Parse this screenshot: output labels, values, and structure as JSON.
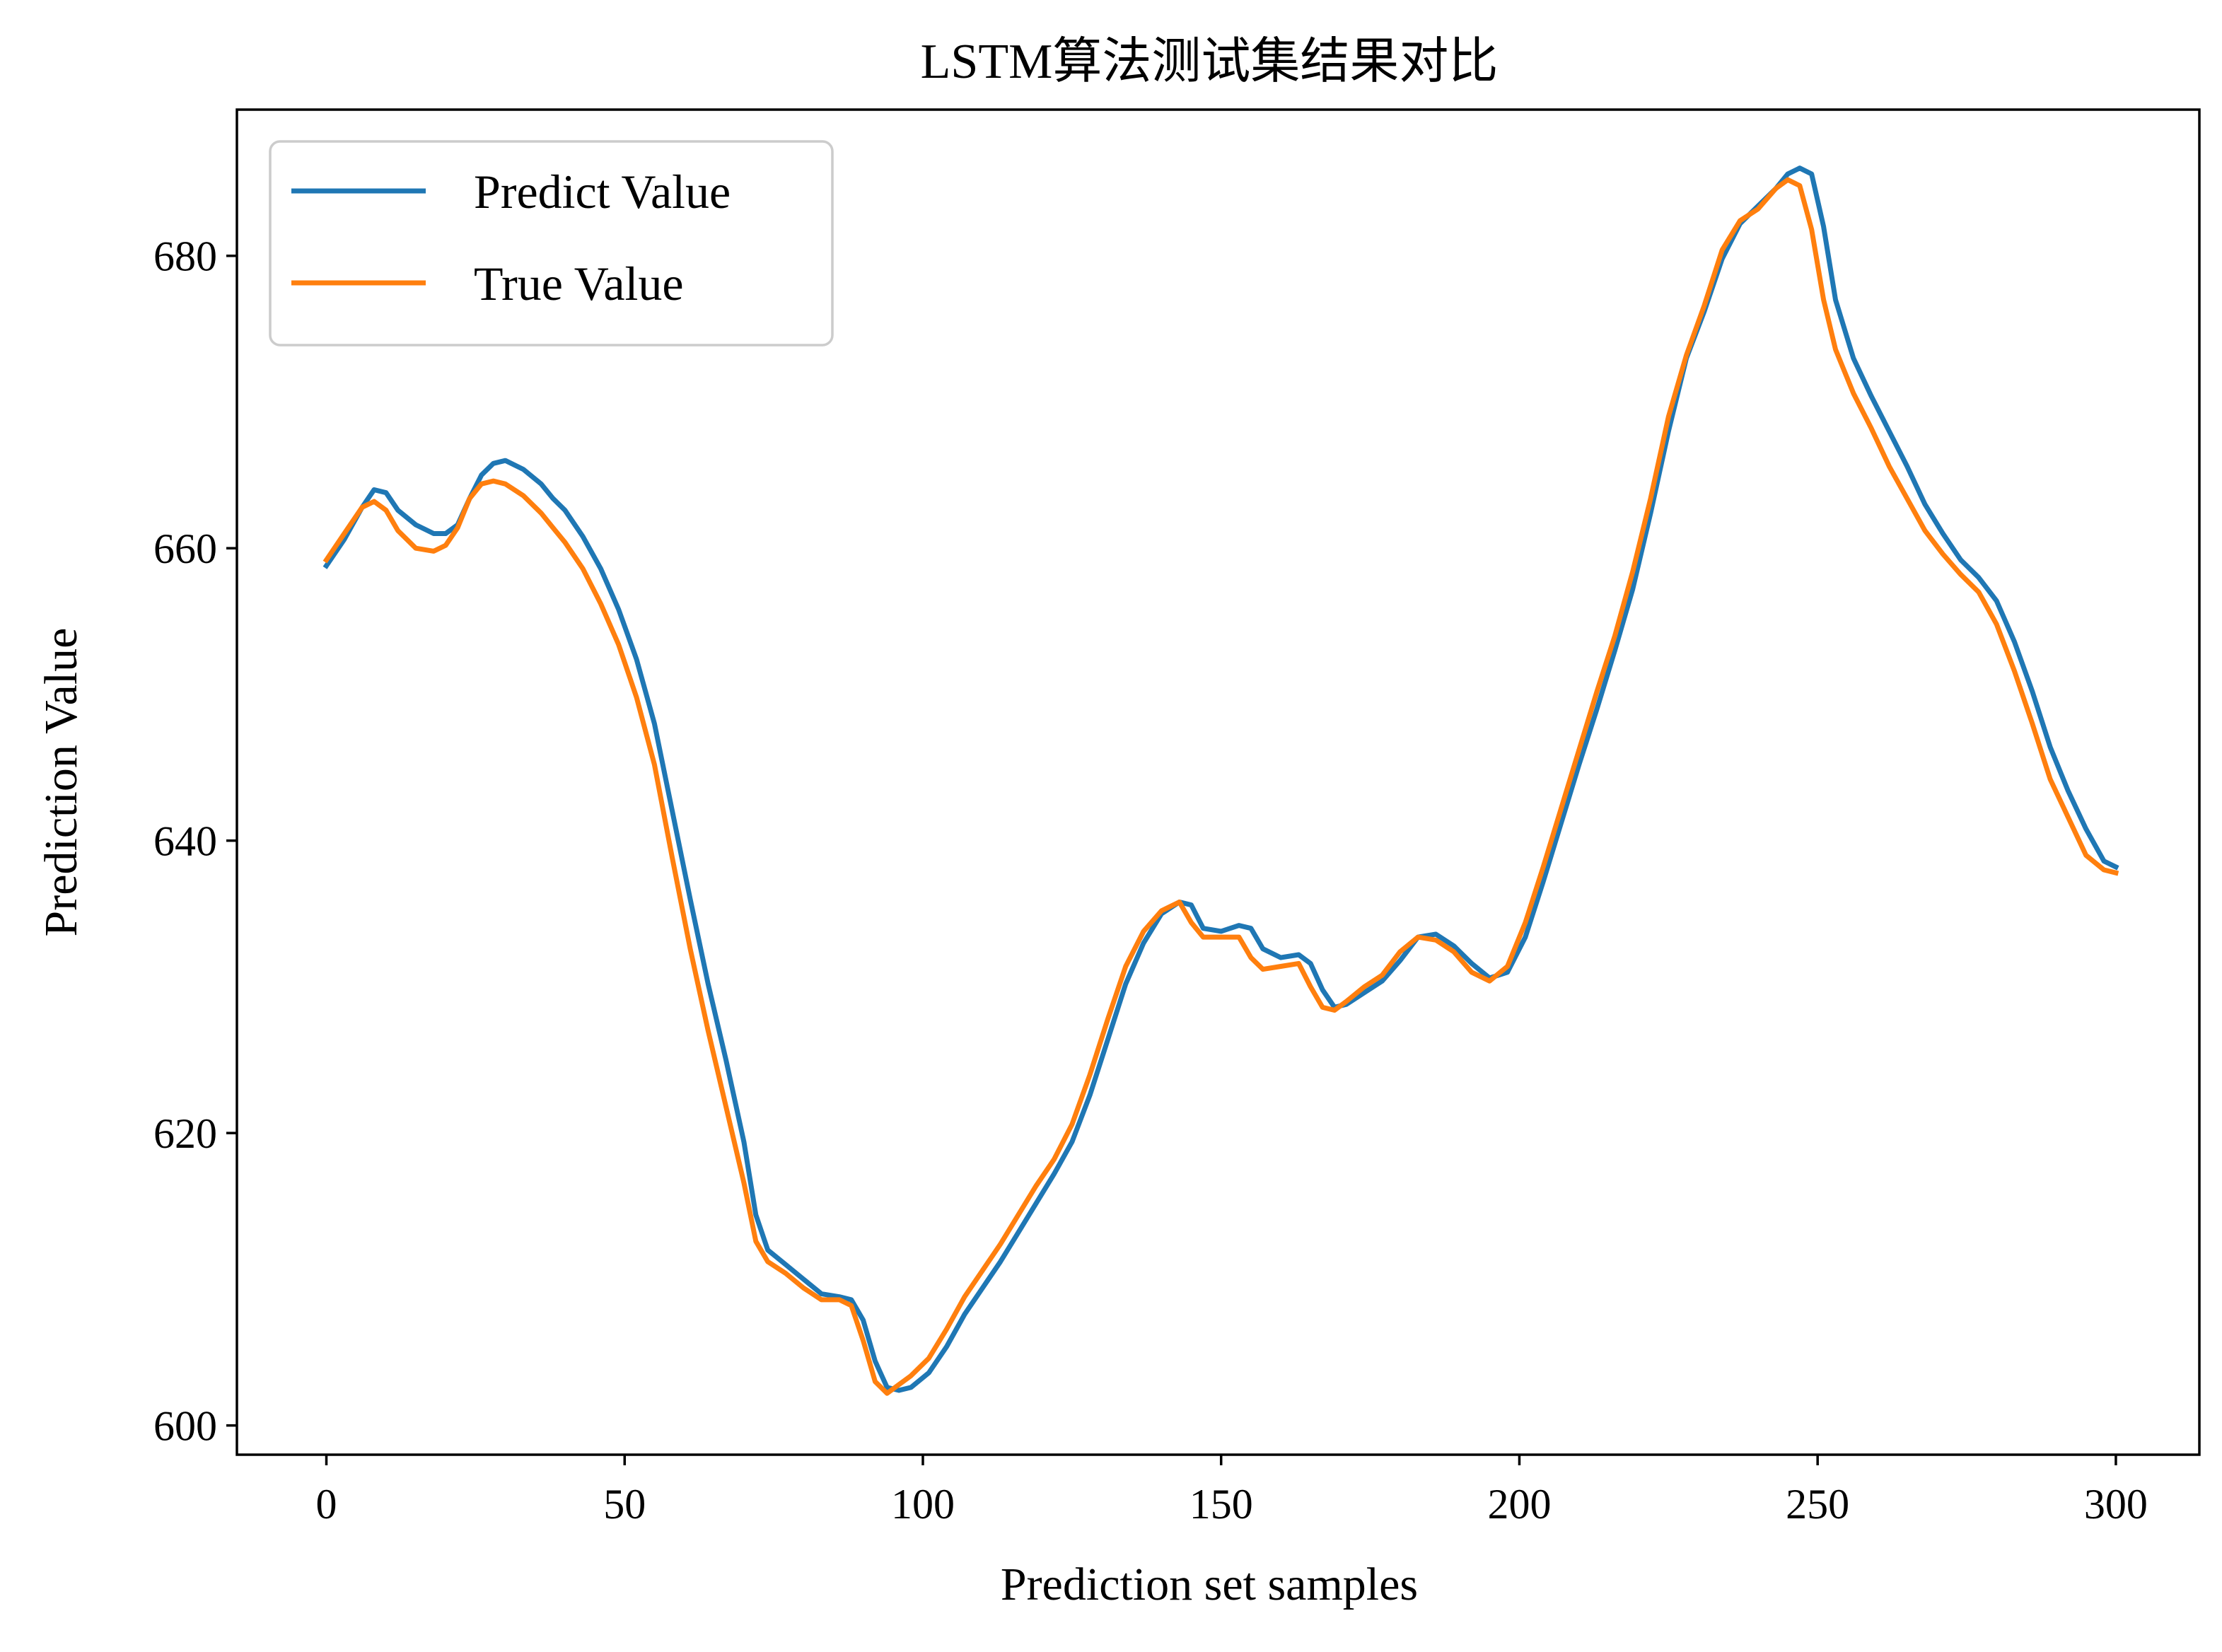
{
  "chart_data": {
    "type": "line",
    "title": "LSTM算法测试集结果对比",
    "xlabel": "Prediction set samples",
    "ylabel": "Prediction Value",
    "xlim": [
      -15,
      314
    ],
    "ylim": [
      598,
      690
    ],
    "xticks": [
      0,
      50,
      100,
      150,
      200,
      250,
      300
    ],
    "yticks": [
      600,
      620,
      640,
      660,
      680
    ],
    "grid": false,
    "legend_position": "top-left",
    "series": [
      {
        "name": "Predict Value",
        "color": "#1f77b4",
        "points": [
          [
            0,
            658.8
          ],
          [
            3,
            660.6
          ],
          [
            6,
            662.8
          ],
          [
            8,
            664.0
          ],
          [
            10,
            663.8
          ],
          [
            12,
            662.6
          ],
          [
            15,
            661.6
          ],
          [
            18,
            661.0
          ],
          [
            20,
            661.0
          ],
          [
            22,
            661.6
          ],
          [
            24,
            663.4
          ],
          [
            26,
            665.0
          ],
          [
            28,
            665.8
          ],
          [
            30,
            666.0
          ],
          [
            33,
            665.4
          ],
          [
            36,
            664.4
          ],
          [
            38,
            663.4
          ],
          [
            40,
            662.6
          ],
          [
            43,
            660.8
          ],
          [
            46,
            658.6
          ],
          [
            49,
            655.8
          ],
          [
            52,
            652.4
          ],
          [
            55,
            648.0
          ],
          [
            58,
            642.0
          ],
          [
            61,
            636.0
          ],
          [
            64,
            630.2
          ],
          [
            67,
            625.0
          ],
          [
            70,
            619.4
          ],
          [
            72,
            614.4
          ],
          [
            74,
            612.0
          ],
          [
            77,
            611.0
          ],
          [
            80,
            610.0
          ],
          [
            83,
            609.0
          ],
          [
            86,
            608.8
          ],
          [
            88,
            608.6
          ],
          [
            90,
            607.2
          ],
          [
            92,
            604.4
          ],
          [
            94,
            602.6
          ],
          [
            96,
            602.4
          ],
          [
            98,
            602.6
          ],
          [
            101,
            603.6
          ],
          [
            104,
            605.4
          ],
          [
            107,
            607.6
          ],
          [
            110,
            609.4
          ],
          [
            113,
            611.2
          ],
          [
            116,
            613.2
          ],
          [
            119,
            615.2
          ],
          [
            122,
            617.2
          ],
          [
            125,
            619.4
          ],
          [
            128,
            622.6
          ],
          [
            131,
            626.4
          ],
          [
            134,
            630.2
          ],
          [
            137,
            633.0
          ],
          [
            140,
            635.0
          ],
          [
            143,
            635.8
          ],
          [
            145,
            635.6
          ],
          [
            147,
            634.0
          ],
          [
            150,
            633.8
          ],
          [
            153,
            634.2
          ],
          [
            155,
            634.0
          ],
          [
            157,
            632.6
          ],
          [
            160,
            632.0
          ],
          [
            163,
            632.2
          ],
          [
            165,
            631.6
          ],
          [
            167,
            629.8
          ],
          [
            169,
            628.6
          ],
          [
            171,
            628.8
          ],
          [
            174,
            629.6
          ],
          [
            177,
            630.4
          ],
          [
            180,
            631.8
          ],
          [
            183,
            633.4
          ],
          [
            186,
            633.6
          ],
          [
            189,
            632.8
          ],
          [
            192,
            631.6
          ],
          [
            195,
            630.6
          ],
          [
            198,
            631.0
          ],
          [
            201,
            633.4
          ],
          [
            204,
            637.2
          ],
          [
            207,
            641.2
          ],
          [
            210,
            645.2
          ],
          [
            213,
            649.0
          ],
          [
            216,
            653.0
          ],
          [
            219,
            657.2
          ],
          [
            222,
            662.4
          ],
          [
            225,
            668.0
          ],
          [
            228,
            673.0
          ],
          [
            231,
            676.2
          ],
          [
            234,
            679.8
          ],
          [
            237,
            682.2
          ],
          [
            240,
            683.4
          ],
          [
            243,
            684.6
          ],
          [
            245,
            685.6
          ],
          [
            247,
            686.0
          ],
          [
            249,
            685.6
          ],
          [
            251,
            682.0
          ],
          [
            253,
            677.0
          ],
          [
            256,
            673.0
          ],
          [
            259,
            670.4
          ],
          [
            262,
            668.0
          ],
          [
            265,
            665.6
          ],
          [
            268,
            663.0
          ],
          [
            271,
            661.0
          ],
          [
            274,
            659.2
          ],
          [
            277,
            658.0
          ],
          [
            280,
            656.4
          ],
          [
            283,
            653.6
          ],
          [
            286,
            650.2
          ],
          [
            289,
            646.4
          ],
          [
            292,
            643.4
          ],
          [
            295,
            640.8
          ],
          [
            298,
            638.6
          ],
          [
            300,
            638.2
          ]
        ]
      },
      {
        "name": "True Value",
        "color": "#ff7f0e",
        "points": [
          [
            0,
            659.2
          ],
          [
            3,
            661.0
          ],
          [
            6,
            662.8
          ],
          [
            8,
            663.2
          ],
          [
            10,
            662.6
          ],
          [
            12,
            661.2
          ],
          [
            15,
            660.0
          ],
          [
            18,
            659.8
          ],
          [
            20,
            660.2
          ],
          [
            22,
            661.4
          ],
          [
            24,
            663.4
          ],
          [
            26,
            664.4
          ],
          [
            28,
            664.6
          ],
          [
            30,
            664.4
          ],
          [
            33,
            663.6
          ],
          [
            36,
            662.4
          ],
          [
            38,
            661.4
          ],
          [
            40,
            660.4
          ],
          [
            43,
            658.6
          ],
          [
            46,
            656.2
          ],
          [
            49,
            653.4
          ],
          [
            52,
            649.8
          ],
          [
            55,
            645.2
          ],
          [
            58,
            638.8
          ],
          [
            61,
            632.6
          ],
          [
            64,
            627.0
          ],
          [
            67,
            621.8
          ],
          [
            70,
            616.6
          ],
          [
            72,
            612.6
          ],
          [
            74,
            611.2
          ],
          [
            77,
            610.4
          ],
          [
            80,
            609.4
          ],
          [
            83,
            608.6
          ],
          [
            86,
            608.6
          ],
          [
            88,
            608.2
          ],
          [
            90,
            605.8
          ],
          [
            92,
            603.0
          ],
          [
            94,
            602.2
          ],
          [
            96,
            602.8
          ],
          [
            98,
            603.4
          ],
          [
            101,
            604.6
          ],
          [
            104,
            606.6
          ],
          [
            107,
            608.8
          ],
          [
            110,
            610.6
          ],
          [
            113,
            612.4
          ],
          [
            116,
            614.4
          ],
          [
            119,
            616.4
          ],
          [
            122,
            618.2
          ],
          [
            125,
            620.6
          ],
          [
            128,
            624.0
          ],
          [
            131,
            627.8
          ],
          [
            134,
            631.4
          ],
          [
            137,
            633.8
          ],
          [
            140,
            635.2
          ],
          [
            143,
            635.8
          ],
          [
            145,
            634.4
          ],
          [
            147,
            633.4
          ],
          [
            150,
            633.4
          ],
          [
            153,
            633.4
          ],
          [
            155,
            632.0
          ],
          [
            157,
            631.2
          ],
          [
            160,
            631.4
          ],
          [
            163,
            631.6
          ],
          [
            165,
            630.0
          ],
          [
            167,
            628.6
          ],
          [
            169,
            628.4
          ],
          [
            171,
            629.0
          ],
          [
            174,
            630.0
          ],
          [
            177,
            630.8
          ],
          [
            180,
            632.4
          ],
          [
            183,
            633.4
          ],
          [
            186,
            633.2
          ],
          [
            189,
            632.4
          ],
          [
            192,
            631.0
          ],
          [
            195,
            630.4
          ],
          [
            198,
            631.4
          ],
          [
            201,
            634.4
          ],
          [
            204,
            638.2
          ],
          [
            207,
            642.2
          ],
          [
            210,
            646.2
          ],
          [
            213,
            650.2
          ],
          [
            216,
            654.0
          ],
          [
            219,
            658.4
          ],
          [
            222,
            663.4
          ],
          [
            225,
            669.0
          ],
          [
            228,
            673.2
          ],
          [
            231,
            676.6
          ],
          [
            234,
            680.4
          ],
          [
            237,
            682.4
          ],
          [
            240,
            683.2
          ],
          [
            243,
            684.6
          ],
          [
            245,
            685.2
          ],
          [
            247,
            684.8
          ],
          [
            249,
            681.8
          ],
          [
            251,
            677.0
          ],
          [
            253,
            673.6
          ],
          [
            256,
            670.6
          ],
          [
            259,
            668.2
          ],
          [
            262,
            665.6
          ],
          [
            265,
            663.4
          ],
          [
            268,
            661.2
          ],
          [
            271,
            659.6
          ],
          [
            274,
            658.2
          ],
          [
            277,
            657.0
          ],
          [
            280,
            654.8
          ],
          [
            283,
            651.6
          ],
          [
            286,
            648.0
          ],
          [
            289,
            644.2
          ],
          [
            292,
            641.6
          ],
          [
            295,
            639.0
          ],
          [
            298,
            638.0
          ],
          [
            300,
            637.8
          ]
        ]
      }
    ]
  }
}
